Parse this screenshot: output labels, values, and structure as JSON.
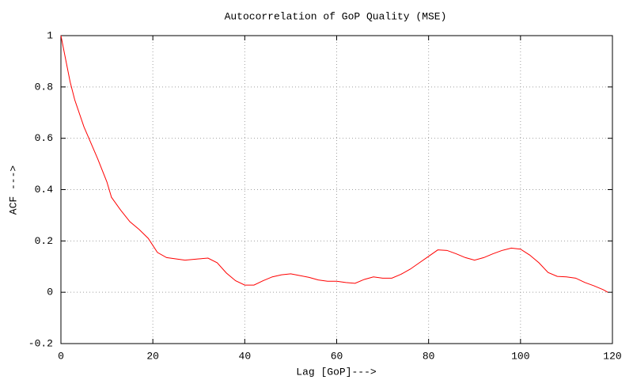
{
  "chart_data": {
    "type": "line",
    "title": "Autocorrelation of GoP Quality (MSE)",
    "xlabel": "Lag [GoP]--->",
    "ylabel": "ACF --->",
    "x": [
      0,
      2,
      3,
      5,
      8,
      10,
      11,
      13,
      15,
      17,
      19,
      21,
      23,
      25,
      27,
      30,
      32,
      34,
      36,
      38,
      40,
      42,
      44,
      46,
      48,
      50,
      52,
      54,
      56,
      58,
      60,
      62,
      64,
      66,
      68,
      70,
      72,
      74,
      76,
      78,
      80,
      82,
      84,
      86,
      88,
      90,
      92,
      94,
      96,
      98,
      100,
      102,
      104,
      106,
      108,
      110,
      112,
      114,
      116,
      118,
      119
    ],
    "values": [
      1.0,
      0.82,
      0.75,
      0.645,
      0.52,
      0.43,
      0.37,
      0.32,
      0.275,
      0.245,
      0.21,
      0.155,
      0.135,
      0.13,
      0.125,
      0.13,
      0.133,
      0.115,
      0.075,
      0.045,
      0.028,
      0.028,
      0.045,
      0.06,
      0.068,
      0.072,
      0.065,
      0.058,
      0.048,
      0.043,
      0.043,
      0.038,
      0.035,
      0.05,
      0.06,
      0.055,
      0.055,
      0.07,
      0.09,
      0.115,
      0.14,
      0.165,
      0.163,
      0.15,
      0.135,
      0.125,
      0.135,
      0.15,
      0.163,
      0.172,
      0.168,
      0.145,
      0.115,
      0.077,
      0.062,
      0.06,
      0.055,
      0.038,
      0.025,
      0.01,
      0.0
    ],
    "color": "#ff0000",
    "xlim": [
      0,
      120
    ],
    "xticks": [
      0,
      20,
      40,
      60,
      80,
      100,
      120
    ],
    "ylim": [
      -0.2,
      1
    ],
    "yticks": [
      -0.2,
      0,
      0.2,
      0.4,
      0.6,
      0.8,
      1
    ],
    "grid": true
  }
}
